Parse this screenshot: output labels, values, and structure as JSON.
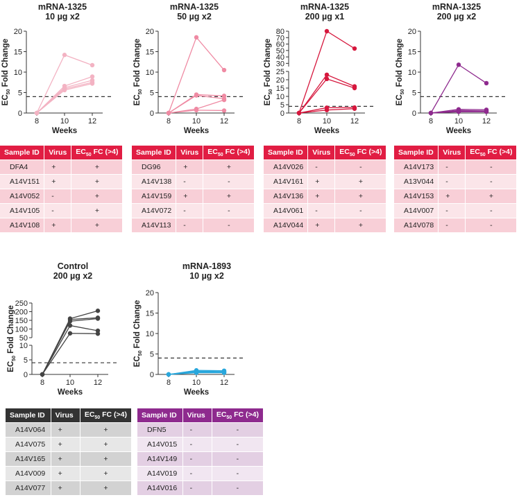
{
  "colors": {
    "light_pink": "#f3b3c3",
    "pink": "#ef8aa3",
    "red": "#d6173d",
    "purple": "#8e2a8e",
    "dark": "#444444",
    "blue": "#29a7dc",
    "red_header": "#e11d43",
    "dark_header": "#333333",
    "purple_header": "#8e2a8e"
  },
  "table_headers": {
    "sample_id": "Sample ID",
    "virus": "Virus",
    "ec50_prefix": "EC",
    "ec50_sub": "50",
    "ec50_suffix": " FC (>4)"
  },
  "chart_data": [
    {
      "type": "line",
      "title": [
        "mRNA-1325",
        "10 µg x2"
      ],
      "xlabel": "Weeks",
      "ylabel_prefix": "EC",
      "ylabel_sub": "50",
      "ylabel_suffix": " Fold Change",
      "x": [
        8,
        10,
        12
      ],
      "ylim": [
        0,
        20
      ],
      "yticks": [
        0,
        5,
        10,
        15,
        20
      ],
      "threshold": 4,
      "series": [
        {
          "values": [
            0,
            14.2,
            11.7
          ]
        },
        {
          "values": [
            0,
            6.6,
            8.9
          ]
        },
        {
          "values": [
            0,
            6.2,
            8.0
          ]
        },
        {
          "values": [
            0,
            5.9,
            7.5
          ]
        },
        {
          "values": [
            0,
            5.6,
            7.2
          ]
        }
      ]
    },
    {
      "type": "line",
      "title": [
        "mRNA-1325",
        "50 µg x2"
      ],
      "xlabel": "Weeks",
      "ylabel_prefix": "EC",
      "ylabel_sub": "50",
      "ylabel_suffix": " Fold Change",
      "x": [
        8,
        10,
        12
      ],
      "ylim": [
        0,
        20
      ],
      "yticks": [
        0,
        5,
        10,
        15,
        20
      ],
      "threshold": 4,
      "series": [
        {
          "values": [
            0,
            18.5,
            10.5
          ]
        },
        {
          "values": [
            0,
            4.5,
            4.2
          ]
        },
        {
          "values": [
            0,
            4.3,
            3.5
          ]
        },
        {
          "values": [
            0,
            1.0,
            3.2
          ]
        },
        {
          "values": [
            0,
            0.7,
            0.6
          ]
        }
      ]
    },
    {
      "type": "line",
      "title": [
        "mRNA-1325",
        "200 µg x1"
      ],
      "xlabel": "Weeks",
      "ylabel_prefix": "EC",
      "ylabel_sub": "50",
      "ylabel_suffix": " Fold Change",
      "x": [
        8,
        10,
        12
      ],
      "broken_axis": true,
      "lower_ylim": [
        0,
        25
      ],
      "lower_yticks": [
        0,
        5,
        10,
        15,
        20,
        25
      ],
      "upper_ylim": [
        25,
        80
      ],
      "upper_yticks": [
        30,
        40,
        50,
        60,
        70,
        80
      ],
      "threshold": 4,
      "series": [
        {
          "values": [
            0,
            80,
            53
          ]
        },
        {
          "values": [
            0,
            23,
            16
          ]
        },
        {
          "values": [
            0,
            20.5,
            15
          ]
        },
        {
          "values": [
            0,
            3.2,
            3.3
          ]
        },
        {
          "values": [
            0,
            1.8,
            2.6
          ]
        }
      ]
    },
    {
      "type": "line",
      "title": [
        "mRNA-1325",
        "200 µg x2"
      ],
      "xlabel": "Weeks",
      "ylabel_prefix": "EC",
      "ylabel_sub": "50",
      "ylabel_suffix": " Fold Change",
      "x": [
        8,
        10,
        12
      ],
      "ylim": [
        0,
        20
      ],
      "yticks": [
        0,
        5,
        10,
        15,
        20
      ],
      "threshold": 4,
      "series": [
        {
          "values": [
            0,
            11.8,
            7.3
          ]
        },
        {
          "values": [
            0,
            0.9,
            0.8
          ]
        },
        {
          "values": [
            0,
            0.6,
            0.5
          ]
        },
        {
          "values": [
            0,
            0.4,
            0.4
          ]
        },
        {
          "values": [
            0,
            0.3,
            0.3
          ]
        }
      ]
    },
    {
      "type": "line",
      "title": [
        "Control",
        "200 µg x2"
      ],
      "xlabel": "Weeks",
      "ylabel_prefix": "EC",
      "ylabel_sub": "50",
      "ylabel_suffix": " Fold Change",
      "x": [
        8,
        10,
        12
      ],
      "broken_axis": true,
      "lower_ylim": [
        0,
        10
      ],
      "lower_yticks": [
        0,
        5,
        10
      ],
      "upper_ylim": [
        50,
        250
      ],
      "upper_yticks": [
        50,
        100,
        150,
        200,
        250
      ],
      "threshold": 4,
      "series": [
        {
          "values": [
            0,
            160,
            205
          ]
        },
        {
          "values": [
            0,
            155,
            165
          ]
        },
        {
          "values": [
            0,
            145,
            160
          ]
        },
        {
          "values": [
            0,
            120,
            90
          ]
        },
        {
          "values": [
            0,
            75,
            73
          ]
        }
      ]
    },
    {
      "type": "line",
      "title": [
        "mRNA-1893",
        "10 µg x2"
      ],
      "xlabel": "Weeks",
      "ylabel_prefix": "EC",
      "ylabel_sub": "50",
      "ylabel_suffix": " Fold Change",
      "x": [
        8,
        10,
        12
      ],
      "ylim": [
        0,
        20
      ],
      "yticks": [
        0,
        5,
        10,
        15,
        20
      ],
      "threshold": 4,
      "series": [
        {
          "values": [
            0,
            1.0,
            0.9
          ]
        },
        {
          "values": [
            0,
            0.8,
            0.7
          ]
        },
        {
          "values": [
            0,
            0.6,
            0.6
          ]
        },
        {
          "values": [
            0,
            0.5,
            0.5
          ]
        },
        {
          "values": [
            0,
            0.4,
            0.4
          ]
        }
      ]
    }
  ],
  "tables": [
    {
      "rows": [
        [
          "DFA4",
          "+",
          "+"
        ],
        [
          "A14V151",
          "+",
          "+"
        ],
        [
          "A14V052",
          "-",
          "+"
        ],
        [
          "A14V105",
          "-",
          "+"
        ],
        [
          "A14V108",
          "+",
          "+"
        ]
      ]
    },
    {
      "rows": [
        [
          "DG96",
          "+",
          "+"
        ],
        [
          "A14V138",
          "-",
          "-"
        ],
        [
          "A14V159",
          "+",
          "+"
        ],
        [
          "A14V072",
          "-",
          "-"
        ],
        [
          "A14V113",
          "-",
          "-"
        ]
      ]
    },
    {
      "rows": [
        [
          "A14V026",
          "-",
          "-"
        ],
        [
          "A14V161",
          "+",
          "+"
        ],
        [
          "A14V136",
          "+",
          "+"
        ],
        [
          "A14V061",
          "-",
          "-"
        ],
        [
          "A14V044",
          "+",
          "+"
        ]
      ]
    },
    {
      "rows": [
        [
          "A14V173",
          "-",
          "-"
        ],
        [
          "A13V044",
          "-",
          "-"
        ],
        [
          "A14V153",
          "+",
          "+"
        ],
        [
          "A14V007",
          "-",
          "-"
        ],
        [
          "A14V078",
          "-",
          "-"
        ]
      ]
    },
    {
      "rows": [
        [
          "A14V064",
          "+",
          "+"
        ],
        [
          "A14V075",
          "+",
          "+"
        ],
        [
          "A14V165",
          "+",
          "+"
        ],
        [
          "A14V009",
          "+",
          "+"
        ],
        [
          "A14V077",
          "+",
          "+"
        ]
      ]
    },
    {
      "rows": [
        [
          "DFN5",
          "-",
          "-"
        ],
        [
          "A14V015",
          "-",
          "-"
        ],
        [
          "A14V149",
          "-",
          "-"
        ],
        [
          "A14V019",
          "-",
          "-"
        ],
        [
          "A14V016",
          "-",
          "-"
        ]
      ]
    }
  ]
}
